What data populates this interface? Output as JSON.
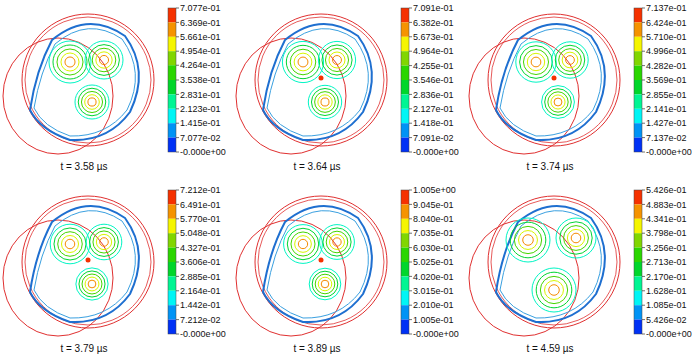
{
  "chart_data": [
    {
      "type": "contour",
      "title": "t = 3.58 µs",
      "colorbar": {
        "range": [
          0,
          0.7077
        ],
        "ticks": [
          {
            "value": 0.7077,
            "label": "7.077e-01"
          },
          {
            "value": 0.6369,
            "label": "6.369e-01"
          },
          {
            "value": 0.5661,
            "label": "5.661e-01"
          },
          {
            "value": 0.4954,
            "label": "4.954e-01"
          },
          {
            "value": 0.4264,
            "label": "4.264e-01"
          },
          {
            "value": 0.3538,
            "label": "3.538e-01"
          },
          {
            "value": 0.2831,
            "label": "2.831e-01"
          },
          {
            "value": 0.2123,
            "label": "2.123e-01"
          },
          {
            "value": 0.1415,
            "label": "1.415e-01"
          },
          {
            "value": 0.07077,
            "label": "7.077e-02"
          },
          {
            "value": 0,
            "label": "-0.000e+00"
          }
        ]
      }
    },
    {
      "type": "contour",
      "title": "t = 3.64 µs",
      "colorbar": {
        "range": [
          0,
          0.7091
        ],
        "ticks": [
          {
            "value": 0.7091,
            "label": "7.091e-01"
          },
          {
            "value": 0.6382,
            "label": "6.382e-01"
          },
          {
            "value": 0.5673,
            "label": "5.673e-01"
          },
          {
            "value": 0.4964,
            "label": "4.964e-01"
          },
          {
            "value": 0.4255,
            "label": "4.255e-01"
          },
          {
            "value": 0.3546,
            "label": "3.546e-01"
          },
          {
            "value": 0.2836,
            "label": "2.836e-01"
          },
          {
            "value": 0.2127,
            "label": "2.127e-01"
          },
          {
            "value": 0.1418,
            "label": "1.418e-01"
          },
          {
            "value": 0.07091,
            "label": "7.091e-02"
          },
          {
            "value": 0,
            "label": "-0.000e+00"
          }
        ]
      }
    },
    {
      "type": "contour",
      "title": "t = 3.74 µs",
      "colorbar": {
        "range": [
          0,
          0.7137
        ],
        "ticks": [
          {
            "value": 0.7137,
            "label": "7.137e-01"
          },
          {
            "value": 0.6424,
            "label": "6.424e-01"
          },
          {
            "value": 0.571,
            "label": "5.710e-01"
          },
          {
            "value": 0.4996,
            "label": "4.996e-01"
          },
          {
            "value": 0.4282,
            "label": "4.282e-01"
          },
          {
            "value": 0.3569,
            "label": "3.569e-01"
          },
          {
            "value": 0.2855,
            "label": "2.855e-01"
          },
          {
            "value": 0.2141,
            "label": "2.141e-01"
          },
          {
            "value": 0.1427,
            "label": "1.427e-01"
          },
          {
            "value": 0.07137,
            "label": "7.137e-02"
          },
          {
            "value": 0,
            "label": "-0.000e+00"
          }
        ]
      }
    },
    {
      "type": "contour",
      "title": "t = 3.79 µs",
      "colorbar": {
        "range": [
          0,
          0.7212
        ],
        "ticks": [
          {
            "value": 0.7212,
            "label": "7.212e-01"
          },
          {
            "value": 0.6491,
            "label": "6.491e-01"
          },
          {
            "value": 0.577,
            "label": "5.770e-01"
          },
          {
            "value": 0.5048,
            "label": "5.048e-01"
          },
          {
            "value": 0.4327,
            "label": "4.327e-01"
          },
          {
            "value": 0.3606,
            "label": "3.606e-01"
          },
          {
            "value": 0.2885,
            "label": "2.885e-01"
          },
          {
            "value": 0.2164,
            "label": "2.164e-01"
          },
          {
            "value": 0.1442,
            "label": "1.442e-01"
          },
          {
            "value": 0.07212,
            "label": "7.212e-02"
          },
          {
            "value": 0,
            "label": "-0.000e+00"
          }
        ]
      }
    },
    {
      "type": "contour",
      "title": "t = 3.89 µs",
      "colorbar": {
        "range": [
          0,
          1.005
        ],
        "ticks": [
          {
            "value": 1.005,
            "label": "1.005e+00"
          },
          {
            "value": 0.9045,
            "label": "9.045e-01"
          },
          {
            "value": 0.804,
            "label": "8.040e-01"
          },
          {
            "value": 0.7035,
            "label": "7.035e-01"
          },
          {
            "value": 0.603,
            "label": "6.030e-01"
          },
          {
            "value": 0.5025,
            "label": "5.025e-01"
          },
          {
            "value": 0.402,
            "label": "4.020e-01"
          },
          {
            "value": 0.3015,
            "label": "3.015e-01"
          },
          {
            "value": 0.201,
            "label": "2.010e-01"
          },
          {
            "value": 0.1005,
            "label": "1.005e-01"
          },
          {
            "value": 0,
            "label": "-0.000e+00"
          }
        ]
      }
    },
    {
      "type": "contour",
      "title": "t = 4.59 µs",
      "colorbar": {
        "range": [
          0,
          0.5426
        ],
        "ticks": [
          {
            "value": 0.5426,
            "label": "5.426e-01"
          },
          {
            "value": 0.4883,
            "label": "4.883e-01"
          },
          {
            "value": 0.4341,
            "label": "4.341e-01"
          },
          {
            "value": 0.3798,
            "label": "3.798e-01"
          },
          {
            "value": 0.3256,
            "label": "3.256e-01"
          },
          {
            "value": 0.2713,
            "label": "2.713e-01"
          },
          {
            "value": 0.217,
            "label": "2.170e-01"
          },
          {
            "value": 0.1628,
            "label": "1.628e-01"
          },
          {
            "value": 0.1085,
            "label": "1.085e-01"
          },
          {
            "value": 0.05426,
            "label": "5.426e-02"
          },
          {
            "value": 0,
            "label": "-0.000e+00"
          }
        ]
      }
    }
  ]
}
